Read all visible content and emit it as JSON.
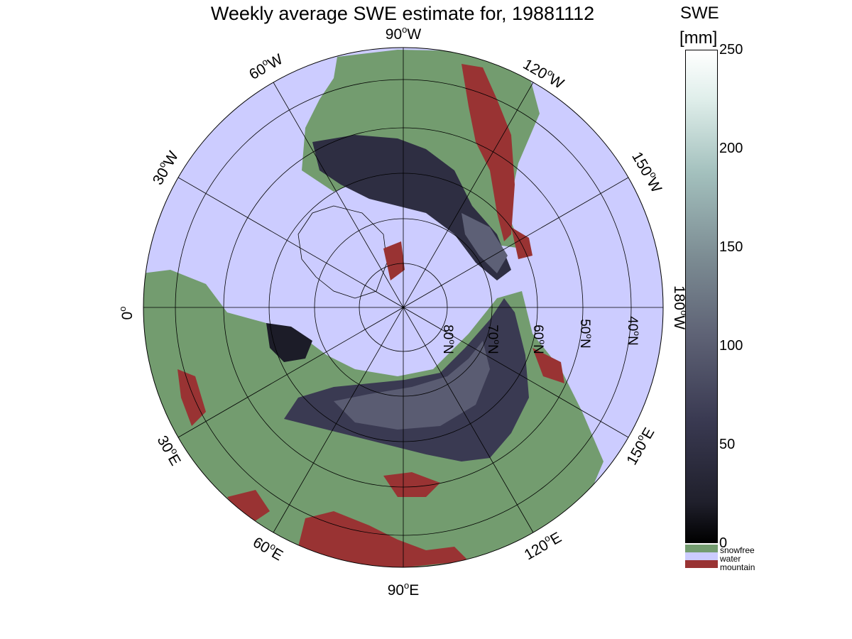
{
  "title": "Weekly average SWE estimate for, 19881112",
  "map": {
    "projection": "north-polar-stereographic",
    "longitude_labels": [
      {
        "text": "90°W",
        "deg": "90",
        "hemi": "W"
      },
      {
        "text": "120°W",
        "deg": "120",
        "hemi": "W"
      },
      {
        "text": "150°W",
        "deg": "150",
        "hemi": "W"
      },
      {
        "text": "180°W",
        "deg": "180",
        "hemi": "W"
      },
      {
        "text": "150°E",
        "deg": "150",
        "hemi": "E"
      },
      {
        "text": "120°E",
        "deg": "120",
        "hemi": "E"
      },
      {
        "text": "90°E",
        "deg": "90",
        "hemi": "E"
      },
      {
        "text": "60°E",
        "deg": "60",
        "hemi": "E"
      },
      {
        "text": "30°E",
        "deg": "30",
        "hemi": "E"
      },
      {
        "text": "0°",
        "deg": "0",
        "hemi": ""
      },
      {
        "text": "30°W",
        "deg": "30",
        "hemi": "W"
      },
      {
        "text": "60°W",
        "deg": "60",
        "hemi": "W"
      }
    ],
    "latitude_labels": [
      {
        "text": "80°N",
        "deg": "80",
        "hemi": "N"
      },
      {
        "text": "70°N",
        "deg": "70",
        "hemi": "N"
      },
      {
        "text": "60°N",
        "deg": "60",
        "hemi": "N"
      },
      {
        "text": "50°N",
        "deg": "50",
        "hemi": "N"
      },
      {
        "text": "40°N",
        "deg": "40",
        "hemi": "N"
      }
    ],
    "colors": {
      "water": "#ccccff",
      "snowfree": "#739c6f",
      "mountain": "#993333",
      "snow_low": "#15151f",
      "snow_mid": "#4a4a63",
      "snow_high": "#5d6076",
      "grid": "#000000"
    }
  },
  "colorbar": {
    "label_line1": "SWE",
    "label_line2": "[mm]",
    "min": 0,
    "max": 250,
    "ticks": [
      "0",
      "50",
      "100",
      "150",
      "200",
      "250"
    ],
    "tick_values": [
      0,
      50,
      100,
      150,
      200,
      250
    ],
    "gradient": [
      "#000000",
      "#1f1f2b",
      "#3a3a52",
      "#5e6275",
      "#7c8c93",
      "#a3c0bd",
      "#dfeeea",
      "#ffffff"
    ]
  },
  "legend": [
    {
      "label": "snowfree",
      "color": "#739c6f"
    },
    {
      "label": "water",
      "color": "#ccccff"
    },
    {
      "label": "mountain",
      "color": "#993333"
    }
  ]
}
